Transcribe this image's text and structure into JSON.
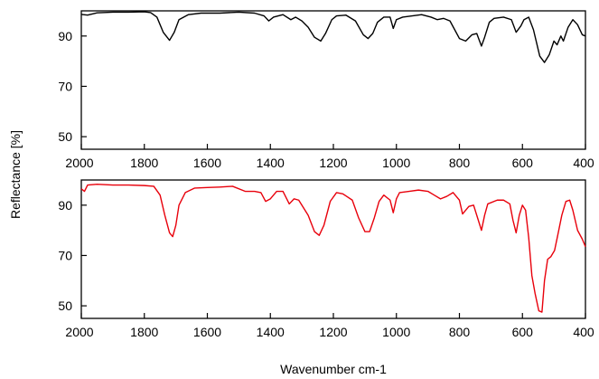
{
  "chart_data": [
    {
      "type": "line",
      "ylabel": "Reflectance [%]",
      "xlabel": "",
      "xlim": [
        2000,
        400
      ],
      "ylim": [
        45,
        100
      ],
      "yticks": [
        50,
        70,
        90
      ],
      "xticks": [
        2000,
        1800,
        1600,
        1400,
        1200,
        1000,
        800,
        600,
        400
      ],
      "xtick_labels": [
        "2000",
        "1800",
        "1600",
        "1400",
        "1200",
        "1000",
        "800",
        "600",
        "400"
      ],
      "ytick_labels": [
        "50",
        "70",
        "90"
      ],
      "grid": false,
      "series": [
        {
          "color": "#000000",
          "points": [
            [
              2000,
              98.6
            ],
            [
              1980,
              98.3
            ],
            [
              1950,
              99.2
            ],
            [
              1900,
              99.5
            ],
            [
              1850,
              99.5
            ],
            [
              1800,
              99.6
            ],
            [
              1780,
              99.3
            ],
            [
              1760,
              97.5
            ],
            [
              1740,
              91.5
            ],
            [
              1720,
              88.3
            ],
            [
              1705,
              91.5
            ],
            [
              1690,
              96.5
            ],
            [
              1660,
              98.5
            ],
            [
              1620,
              99.1
            ],
            [
              1560,
              99.1
            ],
            [
              1500,
              99.5
            ],
            [
              1450,
              99.1
            ],
            [
              1420,
              98.0
            ],
            [
              1405,
              96.0
            ],
            [
              1390,
              97.5
            ],
            [
              1360,
              98.5
            ],
            [
              1335,
              96.5
            ],
            [
              1320,
              97.5
            ],
            [
              1300,
              96.0
            ],
            [
              1280,
              93.5
            ],
            [
              1260,
              89.5
            ],
            [
              1240,
              88.0
            ],
            [
              1225,
              91.0
            ],
            [
              1205,
              96.5
            ],
            [
              1190,
              98.0
            ],
            [
              1160,
              98.3
            ],
            [
              1130,
              96.0
            ],
            [
              1105,
              90.5
            ],
            [
              1090,
              89.0
            ],
            [
              1075,
              91.0
            ],
            [
              1060,
              95.5
            ],
            [
              1040,
              97.5
            ],
            [
              1020,
              97.5
            ],
            [
              1010,
              93.0
            ],
            [
              1000,
              96.5
            ],
            [
              980,
              97.5
            ],
            [
              950,
              98.0
            ],
            [
              920,
              98.5
            ],
            [
              890,
              97.5
            ],
            [
              870,
              96.5
            ],
            [
              850,
              97.0
            ],
            [
              830,
              96.0
            ],
            [
              800,
              89.0
            ],
            [
              780,
              88.0
            ],
            [
              760,
              90.5
            ],
            [
              745,
              91.0
            ],
            [
              730,
              86.0
            ],
            [
              720,
              89.5
            ],
            [
              705,
              95.5
            ],
            [
              690,
              97.0
            ],
            [
              660,
              97.5
            ],
            [
              635,
              96.5
            ],
            [
              620,
              91.5
            ],
            [
              605,
              94.0
            ],
            [
              595,
              96.5
            ],
            [
              580,
              97.5
            ],
            [
              565,
              92.5
            ],
            [
              545,
              82.0
            ],
            [
              530,
              79.5
            ],
            [
              515,
              82.5
            ],
            [
              500,
              88.0
            ],
            [
              490,
              86.5
            ],
            [
              478,
              90.0
            ],
            [
              470,
              88.0
            ],
            [
              455,
              93.5
            ],
            [
              440,
              96.5
            ],
            [
              425,
              94.5
            ],
            [
              410,
              90.5
            ],
            [
              400,
              90.0
            ]
          ]
        },
        {
          "color": "#e8000b",
          "points": [
            [
              2000,
              96.5
            ],
            [
              1990,
              95.5
            ],
            [
              1980,
              98.0
            ],
            [
              1950,
              98.3
            ],
            [
              1900,
              98.0
            ],
            [
              1850,
              98.0
            ],
            [
              1800,
              97.8
            ],
            [
              1770,
              97.5
            ],
            [
              1750,
              94.0
            ],
            [
              1735,
              86.0
            ],
            [
              1720,
              79.0
            ],
            [
              1710,
              77.5
            ],
            [
              1700,
              82.0
            ],
            [
              1690,
              90.0
            ],
            [
              1670,
              95.0
            ],
            [
              1640,
              96.8
            ],
            [
              1600,
              97.0
            ],
            [
              1560,
              97.2
            ],
            [
              1520,
              97.5
            ],
            [
              1480,
              95.5
            ],
            [
              1450,
              95.5
            ],
            [
              1430,
              95.0
            ],
            [
              1415,
              91.5
            ],
            [
              1400,
              92.5
            ],
            [
              1380,
              95.5
            ],
            [
              1360,
              95.5
            ],
            [
              1340,
              90.5
            ],
            [
              1325,
              92.5
            ],
            [
              1310,
              92.0
            ],
            [
              1280,
              86.0
            ],
            [
              1260,
              79.5
            ],
            [
              1245,
              78.0
            ],
            [
              1230,
              82.0
            ],
            [
              1210,
              91.5
            ],
            [
              1190,
              95.0
            ],
            [
              1170,
              94.5
            ],
            [
              1140,
              92.0
            ],
            [
              1120,
              85.0
            ],
            [
              1100,
              79.5
            ],
            [
              1085,
              79.5
            ],
            [
              1070,
              85.0
            ],
            [
              1055,
              91.5
            ],
            [
              1040,
              94.0
            ],
            [
              1020,
              92.0
            ],
            [
              1010,
              87.0
            ],
            [
              1000,
              92.5
            ],
            [
              990,
              95.0
            ],
            [
              960,
              95.5
            ],
            [
              930,
              96.0
            ],
            [
              900,
              95.5
            ],
            [
              880,
              94.0
            ],
            [
              860,
              92.5
            ],
            [
              840,
              93.5
            ],
            [
              820,
              95.0
            ],
            [
              800,
              92.0
            ],
            [
              790,
              86.5
            ],
            [
              770,
              89.5
            ],
            [
              755,
              90.0
            ],
            [
              740,
              84.0
            ],
            [
              730,
              80.0
            ],
            [
              720,
              86.0
            ],
            [
              710,
              90.5
            ],
            [
              680,
              92.0
            ],
            [
              660,
              92.0
            ],
            [
              640,
              90.5
            ],
            [
              630,
              84.0
            ],
            [
              620,
              79.0
            ],
            [
              610,
              86.0
            ],
            [
              600,
              90.0
            ],
            [
              590,
              88.0
            ],
            [
              580,
              77.0
            ],
            [
              570,
              62.0
            ],
            [
              560,
              55.0
            ],
            [
              548,
              48.0
            ],
            [
              538,
              47.5
            ],
            [
              530,
              60.0
            ],
            [
              520,
              68.5
            ],
            [
              510,
              69.5
            ],
            [
              498,
              72.0
            ],
            [
              488,
              78.0
            ],
            [
              475,
              86.0
            ],
            [
              462,
              91.5
            ],
            [
              450,
              92.0
            ],
            [
              440,
              88.0
            ],
            [
              425,
              80.0
            ],
            [
              410,
              76.5
            ],
            [
              400,
              73.5
            ]
          ]
        }
      ]
    },
    {
      "_note_shared_axis_labels": true
    }
  ],
  "shared": {
    "xlabel": "Wavenumber cm-1",
    "ylabel": "Reflectance [%]"
  }
}
